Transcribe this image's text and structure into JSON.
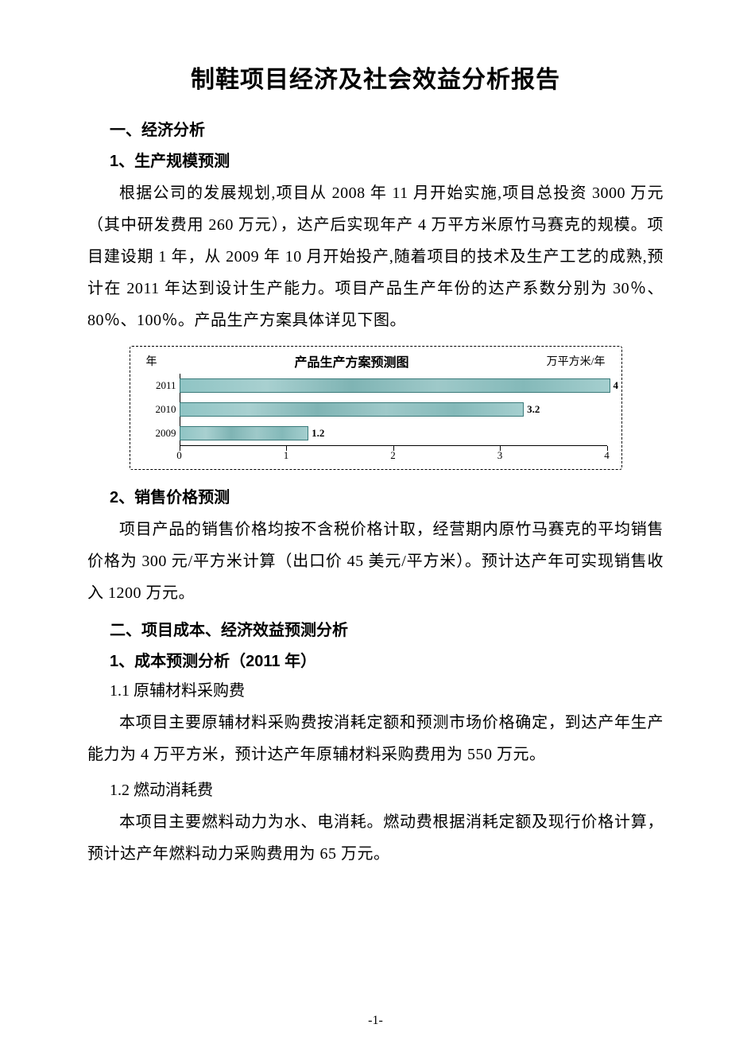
{
  "title": "制鞋项目经济及社会效益分析报告",
  "s1_heading": "一、经济分析",
  "s1_1_heading": "1、生产规模预测",
  "s1_1_para": "根据公司的发展规划,项目从 2008 年 11 月开始实施,项目总投资 3000 万元（其中研发费用 260 万元），达产后实现年产 4 万平方米原竹马赛克的规模。项目建设期 1 年，从 2009 年 10 月开始投产,随着项目的技术及生产工艺的成熟,预计在 2011 年达到设计生产能力。项目产品生产年份的达产系数分别为 30％、80％、100％。产品生产方案具体详见下图。",
  "chart": {
    "type": "bar-horizontal",
    "title": "产品生产方案预测图",
    "y_axis_label": "年",
    "x_axis_unit": "万平方米/年",
    "x_min": 0,
    "x_max": 4,
    "x_ticks": [
      0,
      1,
      2,
      3,
      4
    ],
    "bar_color": "#8fc4c4",
    "bar_border_color": "#3a7a7a",
    "axis_color": "#000000",
    "border_style": "dashed",
    "background_color": "#ffffff",
    "label_fontsize": 13,
    "title_fontsize": 16,
    "rows": [
      {
        "year": "2011",
        "value": 4,
        "label": "4"
      },
      {
        "year": "2010",
        "value": 3.2,
        "label": "3.2"
      },
      {
        "year": "2009",
        "value": 1.2,
        "label": "1.2"
      }
    ]
  },
  "s1_2_heading": "2、销售价格预测",
  "s1_2_para": "项目产品的销售价格均按不含税价格计取，经营期内原竹马赛克的平均销售价格为 300 元/平方米计算（出口价 45 美元/平方米）。预计达产年可实现销售收入 1200 万元。",
  "s2_heading": "二、项目成本、经济效益预测分析",
  "s2_1_heading": "1、成本预测分析（2011 年）",
  "s2_1_1_heading": "1.1 原辅材料采购费",
  "s2_1_1_para": "本项目主要原辅材料采购费按消耗定额和预测市场价格确定，到达产年生产能力为 4 万平方米，预计达产年原辅材料采购费用为 550 万元。",
  "s2_1_2_heading": "1.2 燃动消耗费",
  "s2_1_2_para": "本项目主要燃料动力为水、电消耗。燃动费根据消耗定额及现行价格计算，预计达产年燃料动力采购费用为 65 万元。",
  "page_number": "-1-"
}
